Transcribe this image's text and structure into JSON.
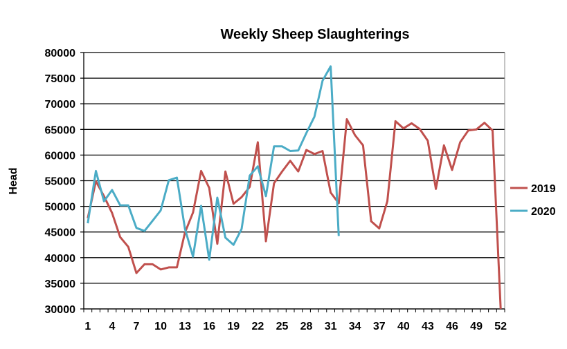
{
  "chart_data": {
    "type": "line",
    "title": "Weekly Sheep Slaughterings",
    "xlabel": "",
    "ylabel": "Head",
    "ylim": [
      30000,
      80000
    ],
    "yticks": [
      "30000",
      "35000",
      "40000",
      "45000",
      "50000",
      "55000",
      "60000",
      "65000",
      "70000",
      "75000",
      "80000"
    ],
    "xticks": [
      "1",
      "4",
      "7",
      "10",
      "13",
      "16",
      "19",
      "22",
      "25",
      "28",
      "31",
      "34",
      "37",
      "40",
      "43",
      "46",
      "49",
      "52"
    ],
    "grid": true,
    "legend": "right",
    "series": [
      {
        "name": "2019",
        "color": "#C0504D",
        "values": [
          47700,
          54900,
          52000,
          48700,
          44000,
          42100,
          37000,
          38700,
          38700,
          37700,
          38100,
          38100,
          44900,
          48800,
          56900,
          53600,
          42700,
          56800,
          50500,
          51800,
          53800,
          62500,
          43200,
          54500,
          56800,
          58900,
          56800,
          61000,
          60200,
          60800,
          52700,
          50600,
          67000,
          63900,
          61900,
          47100,
          45700,
          51000,
          66600,
          65200,
          66200,
          65100,
          62800,
          53400,
          61900,
          57100,
          62500,
          64800,
          65000,
          66300,
          64800,
          30000
        ]
      },
      {
        "name": "2020",
        "color": "#4BACC6",
        "values": [
          46700,
          56900,
          51000,
          53200,
          50200,
          50200,
          45800,
          45200,
          47200,
          49200,
          55100,
          55600,
          45600,
          40200,
          50100,
          39600,
          51700,
          43900,
          42500,
          45600,
          56000,
          57800,
          52000,
          61700,
          61700,
          60800,
          60900,
          64300,
          67500,
          74500,
          77300,
          44200
        ]
      }
    ]
  }
}
